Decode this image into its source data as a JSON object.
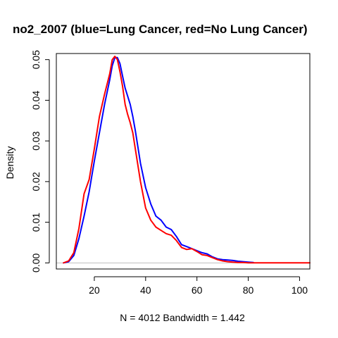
{
  "chart_data": {
    "type": "line",
    "title": "no2_2007 (blue=Lung Cancer, red=No Lung Cancer)",
    "xlabel": "N = 4012   Bandwidth = 1.442",
    "ylabel": "Density",
    "xlim": [
      5.2,
      104
    ],
    "ylim": [
      -0.0015,
      0.0515
    ],
    "xticks": [
      20,
      40,
      60,
      80,
      100
    ],
    "yticks": [
      0.0,
      0.01,
      0.02,
      0.03,
      0.04,
      0.05
    ],
    "ytick_labels": [
      "0.00",
      "0.01",
      "0.02",
      "0.03",
      "0.04",
      "0.05"
    ],
    "baseline_color": "#bebebe",
    "series": [
      {
        "color": "#0000ff",
        "x": [
          8,
          10,
          12,
          14,
          16,
          18,
          20,
          22,
          24,
          26,
          27,
          28,
          29,
          30,
          31,
          32,
          33,
          34,
          35,
          36,
          38,
          40,
          42,
          44,
          46,
          48,
          50,
          52,
          54,
          56,
          58,
          60,
          62,
          64,
          66,
          68,
          70,
          72,
          74,
          76,
          78,
          80,
          82
        ],
        "y": [
          0.0,
          0.0003,
          0.0018,
          0.006,
          0.0115,
          0.0175,
          0.025,
          0.032,
          0.039,
          0.045,
          0.0485,
          0.0505,
          0.0505,
          0.049,
          0.046,
          0.043,
          0.041,
          0.039,
          0.036,
          0.0325,
          0.0245,
          0.0185,
          0.0145,
          0.0115,
          0.0105,
          0.0088,
          0.0082,
          0.0065,
          0.0045,
          0.004,
          0.0035,
          0.003,
          0.0025,
          0.0022,
          0.0015,
          0.001,
          0.0008,
          0.0007,
          0.0006,
          0.0004,
          0.0003,
          0.0002,
          0.0001
        ]
      },
      {
        "color": "#ff0000",
        "x": [
          8,
          10,
          12,
          14,
          16,
          18,
          20,
          22,
          24,
          26,
          27,
          28,
          29,
          30,
          31,
          32,
          33,
          34,
          35,
          36,
          38,
          40,
          42,
          44,
          46,
          48,
          50,
          52,
          54,
          56,
          58,
          60,
          62,
          64,
          66,
          68,
          70,
          72,
          74,
          76,
          78,
          80,
          90,
          104
        ],
        "y": [
          0.0,
          0.0005,
          0.0025,
          0.0085,
          0.017,
          0.0205,
          0.028,
          0.036,
          0.0415,
          0.0465,
          0.05,
          0.0508,
          0.05,
          0.047,
          0.0435,
          0.039,
          0.0365,
          0.0345,
          0.032,
          0.028,
          0.02,
          0.0135,
          0.0105,
          0.0088,
          0.008,
          0.0072,
          0.0068,
          0.0055,
          0.0038,
          0.0033,
          0.0035,
          0.0028,
          0.002,
          0.0018,
          0.0013,
          0.0008,
          0.0005,
          0.0003,
          0.0002,
          0.0001,
          0.0001,
          0.0,
          0.0,
          0.0
        ]
      }
    ]
  }
}
